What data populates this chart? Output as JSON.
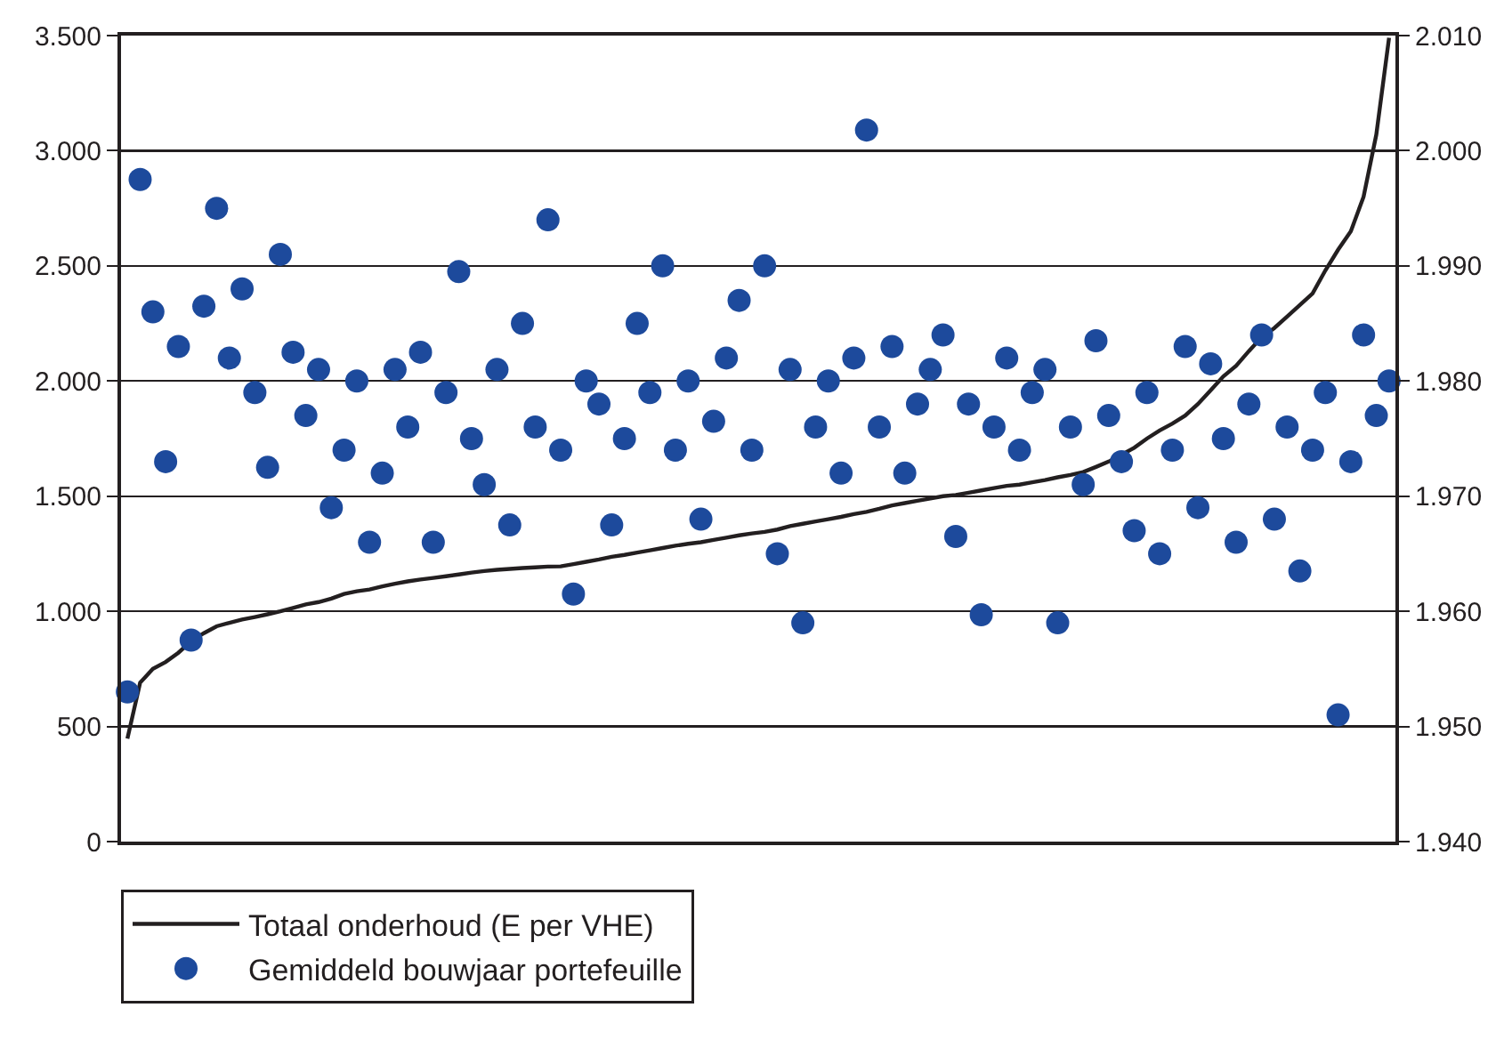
{
  "chart_data": {
    "type": "line",
    "categories": [
      null,
      null,
      null,
      null,
      null,
      null,
      null,
      null,
      null,
      null,
      null,
      null,
      null,
      null,
      null,
      null,
      null,
      null,
      null,
      null,
      null,
      null,
      null,
      null,
      null,
      null,
      null,
      null,
      null,
      null,
      null,
      null,
      null,
      null,
      null,
      null,
      null,
      null,
      null,
      null,
      null,
      null,
      null,
      null,
      null,
      null,
      null,
      null,
      null,
      null,
      null,
      null,
      null,
      null,
      null,
      null,
      null,
      null,
      null,
      null,
      null,
      null,
      null,
      null,
      null,
      null,
      null,
      null,
      null,
      null,
      null,
      null,
      null,
      null,
      null,
      null,
      null,
      null,
      null,
      null,
      null,
      null,
      null,
      null,
      null,
      null,
      null,
      null,
      null,
      null,
      null,
      null,
      null,
      null,
      null,
      null,
      null,
      null,
      null,
      null
    ],
    "series": [
      {
        "name": "Totaal onderhoud (E per VHE)",
        "color": "#231f20",
        "marker": "none",
        "line_style": "solid",
        "values": [
          447,
          690,
          750,
          780,
          820,
          870,
          905,
          935,
          950,
          964,
          975,
          987,
          1000,
          1015,
          1030,
          1040,
          1055,
          1075,
          1087,
          1095,
          1108,
          1120,
          1130,
          1138,
          1145,
          1152,
          1160,
          1168,
          1175,
          1180,
          1184,
          1188,
          1191,
          1194,
          1195,
          1205,
          1215,
          1225,
          1237,
          1245,
          1255,
          1265,
          1275,
          1285,
          1293,
          1300,
          1310,
          1320,
          1330,
          1338,
          1345,
          1355,
          1370,
          1380,
          1390,
          1400,
          1410,
          1422,
          1432,
          1445,
          1460,
          1470,
          1480,
          1490,
          1500,
          1505,
          1515,
          1525,
          1535,
          1545,
          1550,
          1560,
          1570,
          1582,
          1592,
          1605,
          1627,
          1650,
          1680,
          1710,
          1750,
          1785,
          1815,
          1850,
          1900,
          1960,
          2020,
          2066,
          2130,
          2190,
          2230,
          2280,
          2330,
          2380,
          2480,
          2570,
          2650,
          2800,
          3070,
          3490
        ]
      },
      {
        "name": "Gemiddeld bouwjaar portefeuille",
        "type": "scatter",
        "axis": "y2",
        "color": "#1d4a9c",
        "marker": "circle",
        "values": [
          1953,
          1997.5,
          1986,
          1973,
          1983,
          1957.5,
          1986.5,
          1995,
          1982,
          1988,
          1979,
          1972.5,
          1991,
          1982.5,
          1977,
          1981,
          1969,
          1974,
          1980,
          1966,
          1972,
          1981,
          1976,
          1982.5,
          1966,
          1979,
          1989.5,
          1975,
          1971,
          1981,
          1967.5,
          1985,
          1976,
          1994,
          1974,
          1961.5,
          1980,
          1978,
          1967.5,
          1975,
          1985,
          1979,
          1990,
          1974,
          1980,
          1968,
          1976.5,
          1982,
          1987,
          1974,
          1990,
          1965,
          1981,
          1959,
          1976,
          1980,
          1972,
          1982,
          2001.8,
          1976,
          1983,
          1972,
          1978,
          1981,
          1984,
          1966.5,
          1978,
          1959.7,
          1976,
          1982,
          1974,
          1979,
          1981,
          1959,
          1976,
          1971,
          1983.5,
          1977,
          1973,
          1967,
          1979,
          1965,
          1974,
          1983,
          1969,
          1981.5,
          1975,
          1966,
          1978,
          1984,
          1968,
          1976,
          1963.5,
          1974,
          1979,
          1951,
          1973,
          1984,
          1977,
          1980
        ]
      }
    ],
    "ylim": [
      0,
      3500
    ],
    "yticks": [
      {
        "value": 0,
        "label": "0"
      },
      {
        "value": 500,
        "label": "500"
      },
      {
        "value": 1000,
        "label": "1.000"
      },
      {
        "value": 1500,
        "label": "1.500"
      },
      {
        "value": 2000,
        "label": "2.000"
      },
      {
        "value": 2500,
        "label": "2.500"
      },
      {
        "value": 3000,
        "label": "3.000"
      },
      {
        "value": 3500,
        "label": "3.500"
      }
    ],
    "y2lim": [
      1940,
      2010
    ],
    "y2ticks": [
      {
        "value": 1940,
        "label": "1.940"
      },
      {
        "value": 1950,
        "label": "1.950"
      },
      {
        "value": 1960,
        "label": "1.960"
      },
      {
        "value": 1970,
        "label": "1.970"
      },
      {
        "value": 1980,
        "label": "1.980"
      },
      {
        "value": 1990,
        "label": "1.990"
      },
      {
        "value": 2000,
        "label": "2.000"
      },
      {
        "value": 2010,
        "label": "2.010"
      }
    ],
    "grid": "y",
    "legend": "bottom",
    "tick_labels": "y"
  }
}
